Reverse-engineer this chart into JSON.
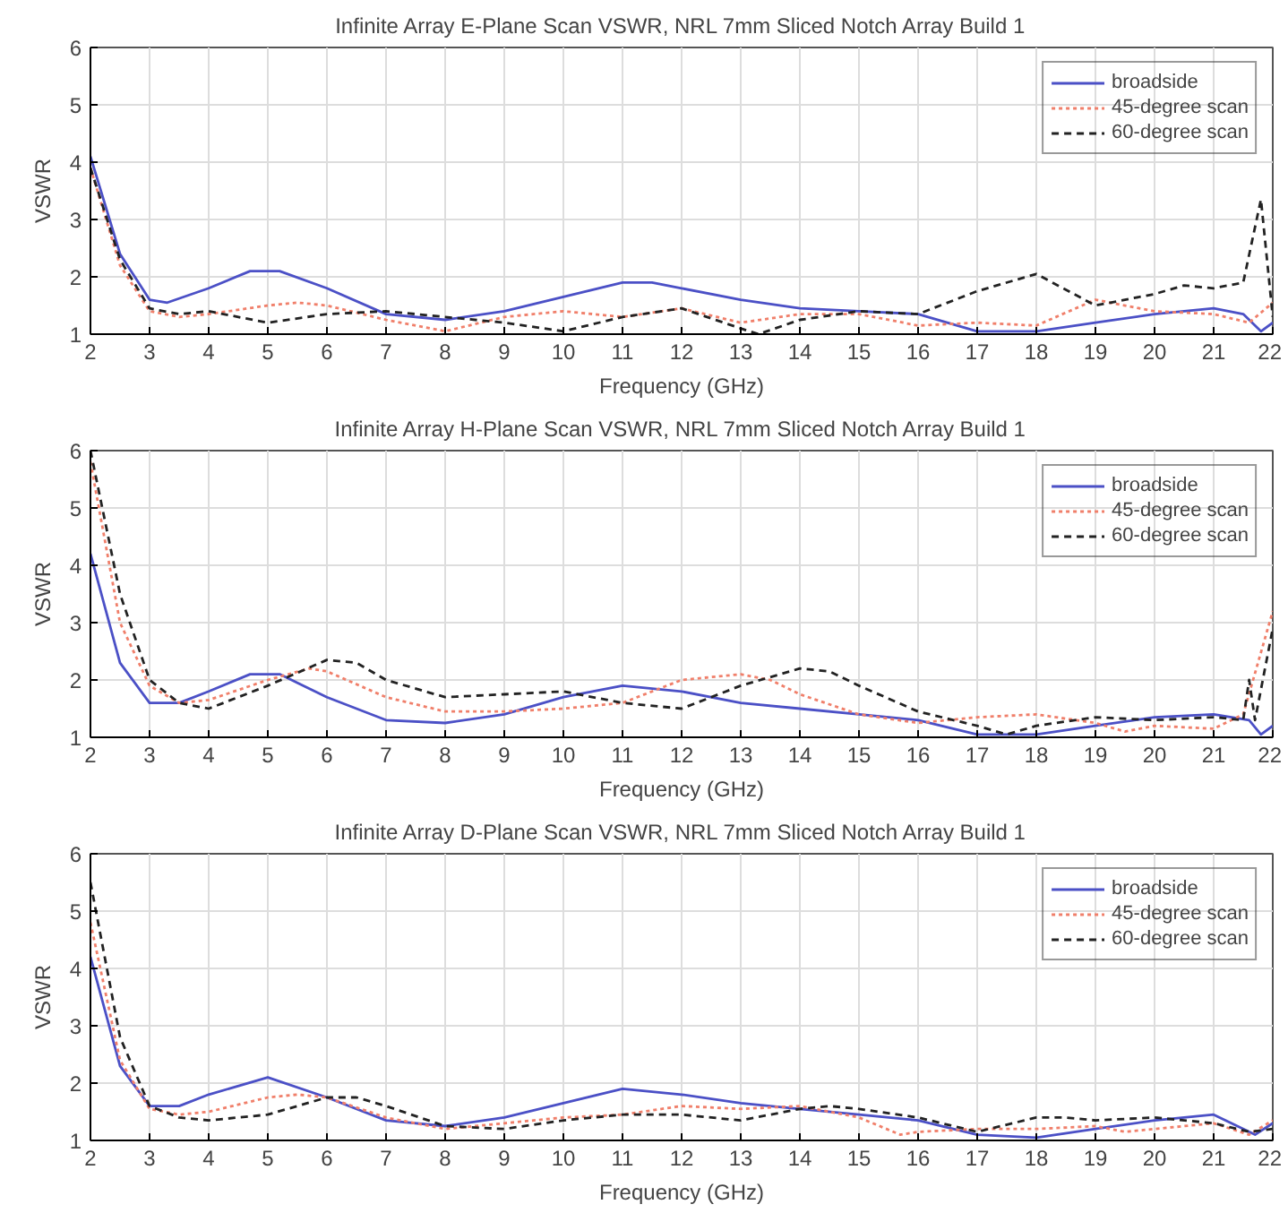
{
  "chart_data": [
    {
      "type": "line",
      "title": "Infinite Array E-Plane Scan VSWR, NRL 7mm Sliced Notch Array Build 1",
      "xlabel": "Frequency (GHz)",
      "ylabel": "VSWR",
      "xlim": [
        2,
        22
      ],
      "ylim": [
        1,
        6
      ],
      "xticks": [
        2,
        3,
        4,
        5,
        6,
        7,
        8,
        9,
        10,
        11,
        12,
        13,
        14,
        15,
        16,
        17,
        18,
        19,
        20,
        21,
        22
      ],
      "yticks": [
        1,
        2,
        3,
        4,
        5,
        6
      ],
      "grid": true,
      "legend": "top right",
      "series": [
        {
          "name": "broadside",
          "color": "#4b50c6",
          "line_style": "solid",
          "x": [
            2,
            2.5,
            3,
            3.3,
            4,
            4.7,
            5.2,
            6,
            7,
            8,
            9,
            10,
            11,
            11.5,
            12,
            13,
            14,
            15,
            16,
            17,
            18,
            19,
            20,
            21,
            21.5,
            21.8,
            22
          ],
          "values": [
            4.1,
            2.4,
            1.6,
            1.55,
            1.8,
            2.1,
            2.1,
            1.8,
            1.35,
            1.25,
            1.4,
            1.65,
            1.9,
            1.9,
            1.8,
            1.6,
            1.45,
            1.4,
            1.35,
            1.05,
            1.05,
            1.2,
            1.35,
            1.45,
            1.35,
            1.05,
            1.2
          ]
        },
        {
          "name": "45-degree scan",
          "color": "#f07f6a",
          "line_style": "dotted",
          "x": [
            2,
            2.5,
            3,
            3.5,
            4,
            5,
            5.5,
            6,
            7,
            8,
            9,
            10,
            11,
            12,
            13,
            14,
            15,
            16,
            17,
            18,
            19,
            20,
            21,
            21.6,
            22
          ],
          "values": [
            3.9,
            2.2,
            1.4,
            1.3,
            1.35,
            1.5,
            1.55,
            1.5,
            1.25,
            1.05,
            1.3,
            1.4,
            1.3,
            1.45,
            1.2,
            1.35,
            1.35,
            1.15,
            1.2,
            1.15,
            1.6,
            1.4,
            1.35,
            1.2,
            1.55
          ]
        },
        {
          "name": "60-degree scan",
          "color": "#222222",
          "line_style": "dashed",
          "x": [
            2,
            2.5,
            3,
            3.5,
            4,
            5,
            6,
            7,
            8,
            9,
            10,
            11,
            12,
            13,
            13.3,
            14,
            15,
            16,
            17,
            18,
            19,
            20,
            20.5,
            21,
            21.5,
            21.8,
            22
          ],
          "values": [
            3.9,
            2.3,
            1.45,
            1.35,
            1.4,
            1.2,
            1.35,
            1.4,
            1.3,
            1.2,
            1.05,
            1.3,
            1.45,
            1.1,
            1.0,
            1.25,
            1.4,
            1.35,
            1.75,
            2.05,
            1.5,
            1.7,
            1.85,
            1.8,
            1.9,
            3.35,
            1.3
          ]
        }
      ]
    },
    {
      "type": "line",
      "title": "Infinite Array H-Plane Scan VSWR, NRL 7mm Sliced Notch Array Build 1",
      "xlabel": "Frequency (GHz)",
      "ylabel": "VSWR",
      "xlim": [
        2,
        22
      ],
      "ylim": [
        1,
        6
      ],
      "xticks": [
        2,
        3,
        4,
        5,
        6,
        7,
        8,
        9,
        10,
        11,
        12,
        13,
        14,
        15,
        16,
        17,
        18,
        19,
        20,
        21,
        22
      ],
      "yticks": [
        1,
        2,
        3,
        4,
        5,
        6
      ],
      "grid": true,
      "legend": "top right",
      "series": [
        {
          "name": "broadside",
          "color": "#4b50c6",
          "line_style": "solid",
          "x": [
            2,
            2.5,
            3,
            3.5,
            4,
            4.7,
            5.2,
            6,
            7,
            8,
            9,
            10,
            11,
            12,
            13,
            14,
            15,
            16,
            17,
            18,
            19,
            20,
            21,
            21.6,
            21.8,
            22
          ],
          "values": [
            4.2,
            2.3,
            1.6,
            1.6,
            1.8,
            2.1,
            2.1,
            1.7,
            1.3,
            1.25,
            1.4,
            1.7,
            1.9,
            1.8,
            1.6,
            1.5,
            1.4,
            1.3,
            1.05,
            1.05,
            1.2,
            1.35,
            1.4,
            1.3,
            1.05,
            1.2
          ]
        },
        {
          "name": "45-degree scan",
          "color": "#f07f6a",
          "line_style": "dotted",
          "x": [
            2,
            2.5,
            3,
            3.5,
            4,
            5,
            5.7,
            6,
            7,
            8,
            9,
            10,
            11,
            12,
            13,
            13.5,
            14,
            15,
            16,
            17,
            18,
            19,
            19.5,
            20,
            21,
            21.5,
            22
          ],
          "values": [
            5.8,
            3.0,
            1.9,
            1.6,
            1.65,
            2.0,
            2.2,
            2.15,
            1.7,
            1.45,
            1.45,
            1.5,
            1.6,
            2.0,
            2.1,
            2.0,
            1.75,
            1.4,
            1.25,
            1.35,
            1.4,
            1.25,
            1.1,
            1.2,
            1.15,
            1.4,
            3.2
          ]
        },
        {
          "name": "60-degree scan",
          "color": "#222222",
          "line_style": "dashed",
          "x": [
            2,
            2.5,
            3,
            3.5,
            4,
            5,
            6,
            6.5,
            7,
            8,
            9,
            10,
            11,
            12,
            13,
            14,
            14.5,
            15,
            16,
            17,
            17.5,
            18,
            19,
            20,
            21,
            21.5,
            21.6,
            21.7,
            22
          ],
          "values": [
            6.0,
            3.5,
            2.0,
            1.6,
            1.5,
            1.9,
            2.35,
            2.3,
            2.0,
            1.7,
            1.75,
            1.8,
            1.6,
            1.5,
            1.9,
            2.2,
            2.15,
            1.9,
            1.45,
            1.2,
            1.05,
            1.2,
            1.35,
            1.3,
            1.35,
            1.3,
            2.0,
            1.3,
            2.9
          ]
        }
      ]
    },
    {
      "type": "line",
      "title": "Infinite Array D-Plane Scan VSWR, NRL 7mm Sliced Notch Array Build 1",
      "xlabel": "Frequency (GHz)",
      "ylabel": "VSWR",
      "xlim": [
        2,
        22
      ],
      "ylim": [
        1,
        6
      ],
      "xticks": [
        2,
        3,
        4,
        5,
        6,
        7,
        8,
        9,
        10,
        11,
        12,
        13,
        14,
        15,
        16,
        17,
        18,
        19,
        20,
        21,
        22
      ],
      "yticks": [
        1,
        2,
        3,
        4,
        5,
        6
      ],
      "grid": true,
      "legend": "top right",
      "series": [
        {
          "name": "broadside",
          "color": "#4b50c6",
          "line_style": "solid",
          "x": [
            2,
            2.5,
            3,
            3.5,
            4,
            5,
            6,
            7,
            8,
            9,
            10,
            11,
            12,
            13,
            14,
            15,
            16,
            17,
            18,
            19,
            20,
            21,
            21.7,
            22
          ],
          "values": [
            4.2,
            2.3,
            1.6,
            1.6,
            1.8,
            2.1,
            1.75,
            1.35,
            1.25,
            1.4,
            1.65,
            1.9,
            1.8,
            1.65,
            1.55,
            1.45,
            1.35,
            1.1,
            1.05,
            1.2,
            1.35,
            1.45,
            1.1,
            1.3
          ]
        },
        {
          "name": "45-degree scan",
          "color": "#f07f6a",
          "line_style": "dotted",
          "x": [
            2,
            2.5,
            3,
            3.5,
            4,
            5,
            5.5,
            6,
            7,
            8,
            9,
            10,
            11,
            12,
            13,
            14,
            15,
            15.7,
            16,
            17,
            18,
            19,
            19.5,
            20,
            21,
            21.6,
            22
          ],
          "values": [
            4.8,
            2.4,
            1.55,
            1.45,
            1.5,
            1.75,
            1.8,
            1.75,
            1.4,
            1.2,
            1.3,
            1.4,
            1.45,
            1.6,
            1.55,
            1.6,
            1.4,
            1.1,
            1.15,
            1.2,
            1.2,
            1.25,
            1.15,
            1.2,
            1.3,
            1.1,
            1.35
          ]
        },
        {
          "name": "60-degree scan",
          "color": "#222222",
          "line_style": "dashed",
          "x": [
            2,
            2.5,
            3,
            3.5,
            4,
            5,
            6,
            6.5,
            7,
            8,
            9,
            10,
            11,
            12,
            13,
            14,
            14.5,
            15,
            16,
            17,
            18,
            18.5,
            19,
            20,
            21,
            21.6,
            22
          ],
          "values": [
            5.5,
            2.8,
            1.6,
            1.4,
            1.35,
            1.45,
            1.75,
            1.75,
            1.6,
            1.25,
            1.2,
            1.35,
            1.45,
            1.45,
            1.35,
            1.55,
            1.6,
            1.55,
            1.4,
            1.15,
            1.4,
            1.4,
            1.35,
            1.4,
            1.3,
            1.15,
            1.2
          ]
        }
      ]
    }
  ]
}
